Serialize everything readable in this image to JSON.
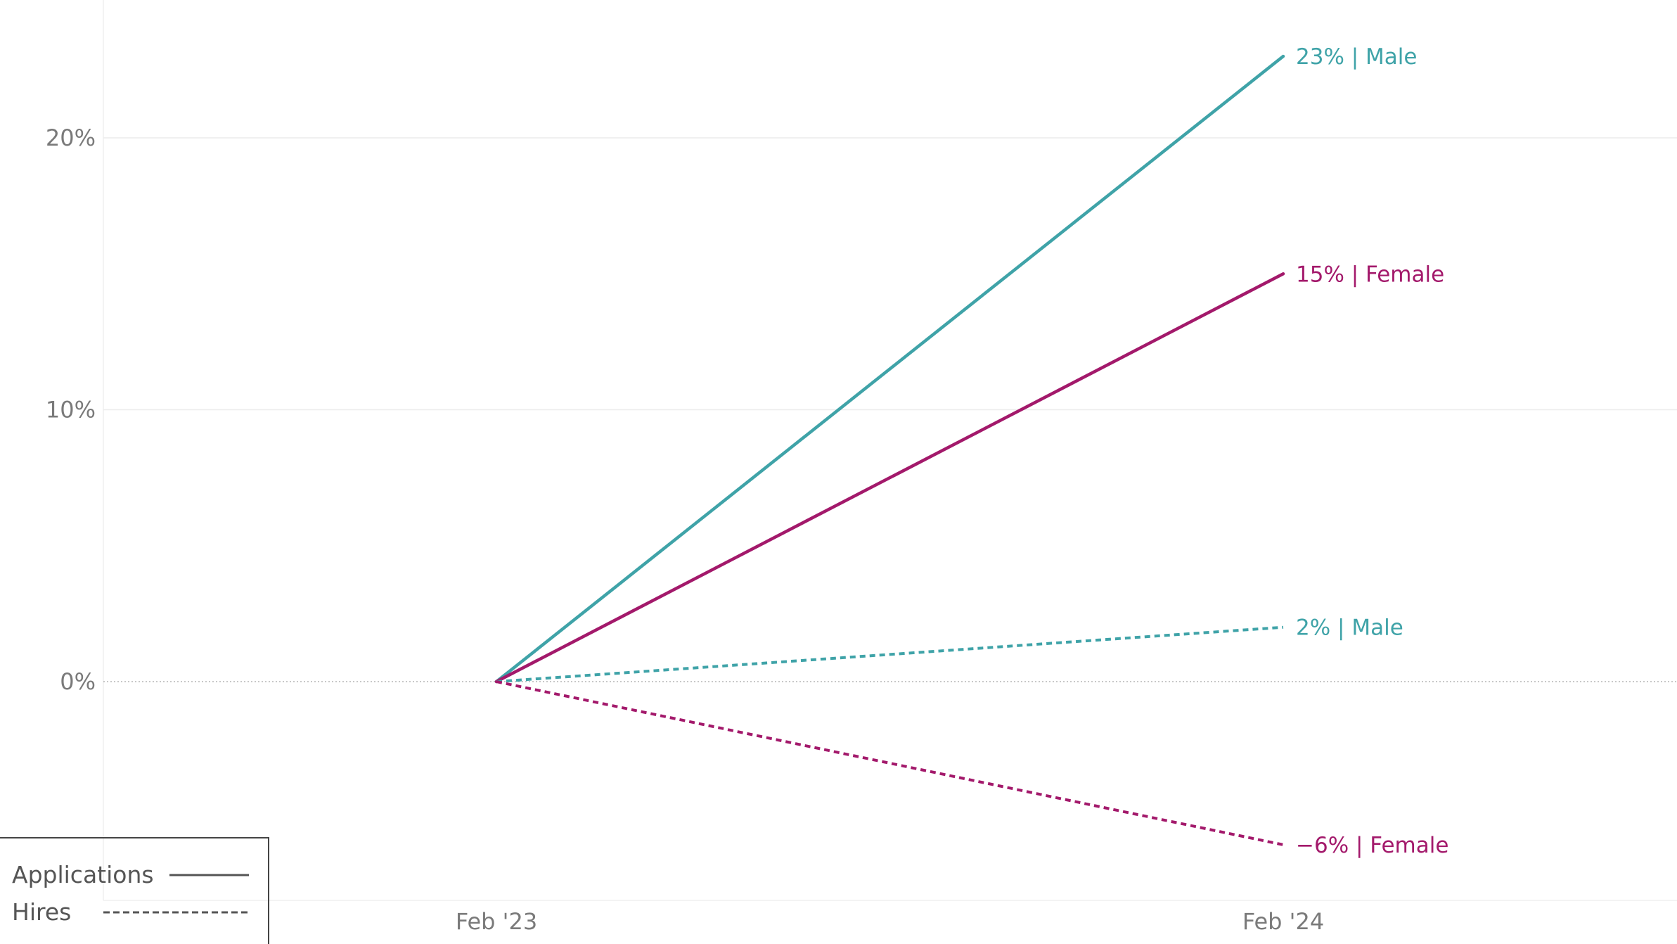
{
  "chart_data": {
    "type": "line",
    "x": [
      "Feb '23",
      "Feb '24"
    ],
    "ylim": [
      -8,
      24
    ],
    "yticks": [
      {
        "value": 0,
        "label": "0%"
      },
      {
        "value": 10,
        "label": "10%"
      },
      {
        "value": 20,
        "label": "20%"
      }
    ],
    "grid": true,
    "legend": {
      "position": "bottom-left",
      "entries": [
        {
          "label": "Applications",
          "style": "solid"
        },
        {
          "label": "Hires",
          "style": "dashed"
        }
      ]
    },
    "series": [
      {
        "metric": "Applications",
        "group": "Male",
        "color": "#3fa3a8",
        "style": "solid",
        "values": [
          0,
          23
        ],
        "end_label": "23% | Male"
      },
      {
        "metric": "Applications",
        "group": "Female",
        "color": "#a3196b",
        "style": "solid",
        "values": [
          0,
          15
        ],
        "end_label": "15% | Female"
      },
      {
        "metric": "Hires",
        "group": "Male",
        "color": "#3fa3a8",
        "style": "dashed",
        "values": [
          0,
          2
        ],
        "end_label": "2% | Male"
      },
      {
        "metric": "Hires",
        "group": "Female",
        "color": "#a3196b",
        "style": "dashed",
        "values": [
          0,
          -6
        ],
        "end_label": "−6% | Female"
      }
    ]
  }
}
